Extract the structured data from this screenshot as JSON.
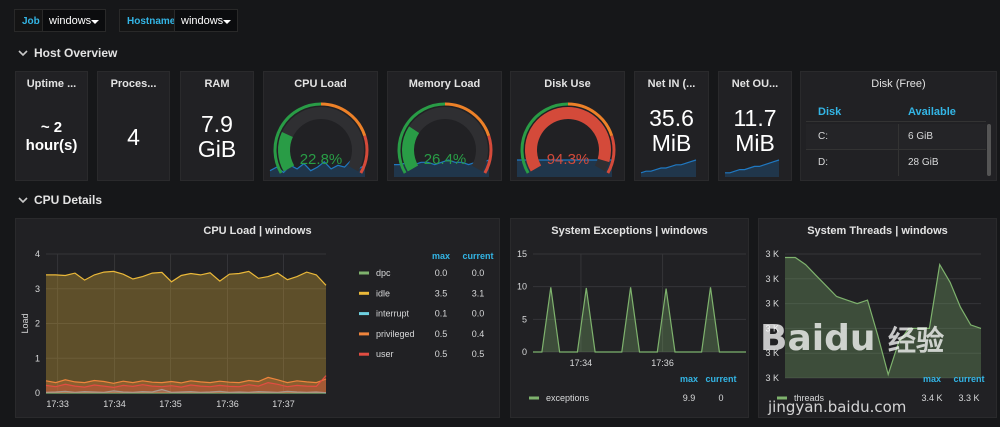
{
  "variables": [
    {
      "label": "Job",
      "value": "windows"
    },
    {
      "label": "Hostname",
      "value": "windows"
    }
  ],
  "rows": [
    "Host Overview",
    "CPU Details"
  ],
  "stats": [
    {
      "title": "Uptime ...",
      "value": "~ 2 hour(s)"
    },
    {
      "title": "Proces...",
      "value": "4"
    },
    {
      "title": "RAM",
      "value": "7.9 GiB"
    },
    {
      "title": "Net IN (...",
      "value": "35.6 MiB",
      "sparkline": [
        2,
        3,
        3,
        4,
        5,
        5,
        6,
        7,
        7,
        8,
        9,
        10
      ]
    },
    {
      "title": "Net OU...",
      "value": "11.7 MiB",
      "sparkline": [
        2,
        2,
        3,
        4,
        4,
        5,
        6,
        6,
        7,
        8,
        9,
        10
      ]
    }
  ],
  "gauges": [
    {
      "title": "CPU Load",
      "value": 22.8,
      "value_label": "22.8%",
      "sparkline": [
        3,
        5,
        2,
        6,
        4,
        7,
        3,
        5,
        8,
        4,
        6,
        5,
        9,
        4,
        6
      ]
    },
    {
      "title": "Memory Load",
      "value": 26.4,
      "value_label": "26.4%",
      "sparkline": [
        5,
        5,
        6,
        5,
        6,
        6,
        5,
        6,
        7,
        6,
        6,
        5,
        6,
        6,
        7
      ]
    },
    {
      "title": "Disk Use",
      "value": 94.3,
      "value_label": "94.3%",
      "sparkline": [
        6,
        6,
        6,
        6,
        6,
        6,
        6,
        6,
        6,
        6,
        6,
        6,
        6,
        6,
        6
      ]
    }
  ],
  "gauge_range": [
    0,
    100
  ],
  "thresholds": [
    50,
    80
  ],
  "threshold_colors": [
    "#299c46",
    "#ed8128",
    "#d44a3a"
  ],
  "disk_table": {
    "title": "Disk (Free)",
    "columns": [
      "Disk",
      "Available"
    ],
    "rows": [
      [
        "C:",
        "6 GiB"
      ],
      [
        "D:",
        "28 GiB"
      ]
    ]
  },
  "graphs": [
    {
      "type": "line",
      "title": "CPU Load | windows",
      "ylabel": "Load",
      "legend_headers": [
        "max",
        "current"
      ],
      "xlim": [
        0,
        29
      ],
      "xticks": [
        {
          "value": 1.2,
          "label": "17:33"
        },
        {
          "value": 7.1,
          "label": "17:34"
        },
        {
          "value": 12.9,
          "label": "17:35"
        },
        {
          "value": 18.8,
          "label": "17:36"
        },
        {
          "value": 24.6,
          "label": "17:37"
        }
      ],
      "ylim": [
        0,
        4
      ],
      "yticks": [
        0,
        1,
        2,
        3,
        4
      ],
      "series": [
        {
          "name": "dpc",
          "color": "#7eb26d",
          "max": "0.0",
          "current": "0.0",
          "values": [
            0,
            0,
            0,
            0,
            0,
            0,
            0,
            0,
            0,
            0,
            0,
            0,
            0,
            0,
            0,
            0,
            0,
            0,
            0,
            0,
            0,
            0,
            0,
            0,
            0,
            0,
            0,
            0,
            0,
            0
          ]
        },
        {
          "name": "idle",
          "color": "#eab839",
          "max": "3.5",
          "current": "3.1",
          "values": [
            3.4,
            3.4,
            3.38,
            3.45,
            3.25,
            3.4,
            3.48,
            3.5,
            3.42,
            3.28,
            3.35,
            3.45,
            3.47,
            3.2,
            3.38,
            3.44,
            3.4,
            3.46,
            3.22,
            3.42,
            3.44,
            3.5,
            3.3,
            3.35,
            3.45,
            3.26,
            3.35,
            3.48,
            3.4,
            3.1
          ]
        },
        {
          "name": "interrupt",
          "color": "#6ed0e0",
          "max": "0.1",
          "current": "0.0",
          "values": [
            0.02,
            0.03,
            0.05,
            0.02,
            0.04,
            0.03,
            0.02,
            0.06,
            0.03,
            0.02,
            0.04,
            0.03,
            0.1,
            0.02,
            0.03,
            0.04,
            0.02,
            0.03,
            0.05,
            0.02,
            0.03,
            0.02,
            0.04,
            0.03,
            0.02,
            0.05,
            0.03,
            0.02,
            0.03,
            0.01
          ]
        },
        {
          "name": "privileged",
          "color": "#ef843c",
          "max": "0.5",
          "current": "0.4",
          "values": [
            0.35,
            0.3,
            0.38,
            0.32,
            0.3,
            0.36,
            0.33,
            0.28,
            0.34,
            0.3,
            0.35,
            0.31,
            0.3,
            0.33,
            0.29,
            0.35,
            0.32,
            0.3,
            0.34,
            0.31,
            0.3,
            0.36,
            0.33,
            0.45,
            0.38,
            0.3,
            0.35,
            0.32,
            0.3,
            0.4
          ]
        },
        {
          "name": "user",
          "color": "#e24d42",
          "max": "0.5",
          "current": "0.5",
          "values": [
            0.22,
            0.18,
            0.25,
            0.2,
            0.17,
            0.23,
            0.2,
            0.16,
            0.22,
            0.19,
            0.24,
            0.2,
            0.18,
            0.21,
            0.17,
            0.23,
            0.2,
            0.18,
            0.22,
            0.19,
            0.18,
            0.24,
            0.2,
            0.3,
            0.25,
            0.18,
            0.22,
            0.2,
            0.19,
            0.5
          ]
        }
      ]
    },
    {
      "type": "line",
      "title": "System Exceptions | windows",
      "legend_headers": [
        "max",
        "current"
      ],
      "xlim": [
        0,
        24
      ],
      "xticks": [
        {
          "value": 5.4,
          "label": "17:34"
        },
        {
          "value": 14.6,
          "label": "17:36"
        }
      ],
      "ylim": [
        0,
        15
      ],
      "yticks": [
        0,
        5,
        10,
        15
      ],
      "series": [
        {
          "name": "exceptions",
          "color": "#7eb26d",
          "max": "9.9",
          "current": "0",
          "values": [
            0,
            0,
            9.9,
            0,
            0,
            0,
            9.8,
            0,
            0,
            0,
            0,
            9.9,
            0,
            0,
            0,
            9.7,
            0,
            0,
            0,
            0,
            9.9,
            0,
            0,
            0,
            0
          ]
        }
      ]
    },
    {
      "type": "line",
      "title": "System Threads | windows",
      "legend_headers": [
        "max",
        "current"
      ],
      "xlim": [
        0,
        19
      ],
      "ylim": [
        3230,
        3405
      ],
      "yticks": [
        {
          "value": 3405,
          "label": "3 K"
        },
        {
          "value": 3370,
          "label": "3 K"
        },
        {
          "value": 3335,
          "label": "3 K"
        },
        {
          "value": 3300,
          "label": "3 K"
        },
        {
          "value": 3265,
          "label": "3 K"
        },
        {
          "value": 3230,
          "label": "3 K"
        }
      ],
      "series": [
        {
          "name": "threads",
          "color": "#7eb26d",
          "max": "3.4 K",
          "current": "3.3 K",
          "values": [
            3400,
            3400,
            3390,
            3375,
            3360,
            3345,
            3340,
            3335,
            3340,
            3290,
            3235,
            3280,
            3300,
            3300,
            3300,
            3390,
            3365,
            3330,
            3305,
            3300
          ]
        }
      ]
    }
  ],
  "watermark": {
    "brand": "Baidu",
    "cn": "经验",
    "url": "jingyan.baidu.com"
  }
}
